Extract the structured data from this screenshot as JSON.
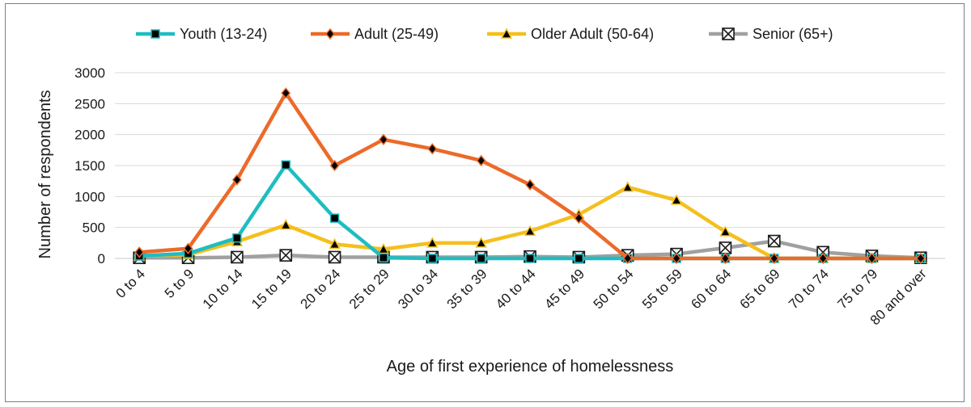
{
  "chart_data": {
    "type": "line",
    "title": "",
    "xlabel": "Age of first experience of homelessness",
    "ylabel": "Number of respondents",
    "ylim": [
      0,
      3000
    ],
    "yticks": [
      0,
      500,
      1000,
      1500,
      2000,
      2500,
      3000
    ],
    "grid": true,
    "legend_position": "top",
    "categories": [
      "0 to 4",
      "5 to 9",
      "10 to 14",
      "15 to 19",
      "20 to 24",
      "25 to 29",
      "30 to 34",
      "35 to 39",
      "40 to 44",
      "45 to 49",
      "50 to 54",
      "55 to 59",
      "60 to 64",
      "65 to 69",
      "70 to 74",
      "75 to 79",
      "80 and over"
    ],
    "series": [
      {
        "name": "Youth (13-24)",
        "color": "#1ebdc2",
        "marker": "square",
        "values": [
          40,
          80,
          330,
          1510,
          650,
          10,
          0,
          0,
          0,
          0,
          0,
          0,
          0,
          0,
          0,
          0,
          0
        ]
      },
      {
        "name": "Adult (25-49)",
        "color": "#ec6a2a",
        "marker": "diamond",
        "values": [
          100,
          160,
          1270,
          2670,
          1500,
          1920,
          1770,
          1580,
          1190,
          650,
          0,
          0,
          0,
          0,
          0,
          0,
          0
        ]
      },
      {
        "name": "Older Adult (50-64)",
        "color": "#f5bf1c",
        "marker": "triangle",
        "values": [
          40,
          60,
          270,
          540,
          230,
          150,
          250,
          250,
          440,
          710,
          1150,
          940,
          430,
          0,
          0,
          0,
          0
        ]
      },
      {
        "name": "Senior (65+)",
        "color": "#a0a0a0",
        "marker": "xsquare",
        "values": [
          10,
          10,
          20,
          50,
          20,
          20,
          20,
          20,
          30,
          20,
          50,
          70,
          170,
          280,
          100,
          40,
          10
        ]
      }
    ]
  }
}
